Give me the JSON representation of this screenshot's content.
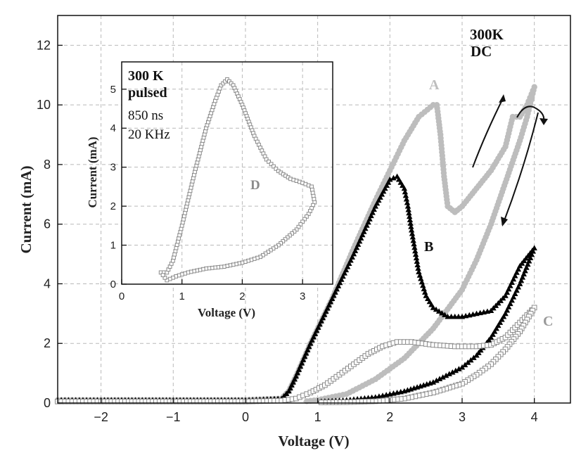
{
  "chart_data": [
    {
      "type": "line",
      "title": "",
      "xlabel": "Voltage (V)",
      "ylabel": "Current (mA)",
      "xlim": [
        -2.6,
        4.5
      ],
      "ylim": [
        0,
        13
      ],
      "xticks": [
        -2,
        -1,
        0,
        1,
        2,
        3,
        4
      ],
      "yticks": [
        0,
        2,
        4,
        6,
        8,
        10,
        12
      ],
      "grid": true,
      "annotations": [
        "300K",
        "DC"
      ],
      "series": [
        {
          "name": "A",
          "color": "#bdbdbd",
          "marker": "circle",
          "x": [
            -2.6,
            -2,
            -1,
            0,
            0.5,
            0.6,
            0.7,
            0.9,
            1.2,
            1.5,
            1.8,
            2.0,
            2.2,
            2.4,
            2.6,
            2.65,
            2.7,
            2.75,
            2.8,
            2.9,
            3.0,
            3.2,
            3.4,
            3.6,
            3.7,
            3.8,
            3.9,
            4.0,
            3.9,
            3.8,
            3.6,
            3.4,
            3.2,
            3.0,
            2.6,
            2.2,
            1.8,
            1.4,
            1.0,
            0.8
          ],
          "y": [
            0.1,
            0.1,
            0.1,
            0.1,
            0.15,
            0.4,
            0.9,
            2.0,
            3.5,
            5.2,
            6.8,
            7.8,
            8.8,
            9.6,
            10.0,
            10.0,
            9.0,
            7.6,
            6.6,
            6.4,
            6.6,
            7.2,
            7.8,
            8.6,
            9.6,
            9.6,
            10.0,
            10.6,
            9.6,
            8.8,
            7.4,
            6.0,
            4.8,
            3.8,
            2.5,
            1.5,
            0.8,
            0.3,
            0.1,
            0.05
          ]
        },
        {
          "name": "B",
          "color": "#000000",
          "marker": "triangle",
          "x": [
            -2.6,
            -2,
            -1,
            0,
            0.5,
            0.6,
            0.7,
            0.9,
            1.2,
            1.5,
            1.8,
            2.0,
            2.1,
            2.2,
            2.25,
            2.3,
            2.4,
            2.5,
            2.6,
            2.8,
            3.0,
            3.2,
            3.4,
            3.6,
            3.8,
            4.0,
            3.8,
            3.6,
            3.4,
            3.2,
            3.0,
            2.6,
            2.2,
            1.8,
            1.4,
            1.0
          ],
          "y": [
            0.1,
            0.1,
            0.1,
            0.1,
            0.15,
            0.4,
            0.9,
            2.0,
            3.5,
            5.0,
            6.6,
            7.5,
            7.6,
            7.2,
            6.6,
            5.8,
            4.4,
            3.6,
            3.2,
            2.9,
            2.9,
            3.0,
            3.1,
            3.6,
            4.6,
            5.2,
            4.0,
            3.0,
            2.2,
            1.6,
            1.2,
            0.7,
            0.4,
            0.2,
            0.1,
            0.05
          ]
        },
        {
          "name": "C",
          "color": "#8a8a8a",
          "marker": "square",
          "x": [
            -2.6,
            -2,
            -1,
            0,
            0.5,
            0.7,
            0.9,
            1.1,
            1.3,
            1.5,
            1.7,
            1.9,
            2.1,
            2.3,
            2.6,
            2.9,
            3.2,
            3.4,
            3.6,
            3.8,
            4.0,
            3.8,
            3.6,
            3.4,
            3.2,
            3.0,
            2.6,
            2.2,
            1.8,
            1.4,
            1.0
          ],
          "y": [
            0.05,
            0.05,
            0.05,
            0.05,
            0.08,
            0.15,
            0.35,
            0.6,
            0.95,
            1.3,
            1.65,
            1.9,
            2.05,
            2.05,
            1.95,
            1.9,
            1.9,
            1.95,
            2.2,
            2.7,
            3.2,
            2.4,
            1.8,
            1.3,
            0.95,
            0.65,
            0.35,
            0.15,
            0.06,
            0.03,
            0.02
          ]
        }
      ],
      "labels": [
        "A",
        "B",
        "C"
      ]
    },
    {
      "type": "line",
      "title": "",
      "xlabel": "Voltage (V)",
      "ylabel": "Current (mA)",
      "xlim": [
        0,
        3.5
      ],
      "ylim": [
        0,
        5.7
      ],
      "xticks": [
        0,
        1,
        2,
        3
      ],
      "yticks": [
        0,
        1,
        2,
        3,
        4,
        5
      ],
      "grid": true,
      "annotations": [
        "300 K",
        "pulsed",
        "850 ns",
        "20 KHz"
      ],
      "series": [
        {
          "name": "D",
          "color": "#8a8a8a",
          "marker": "square",
          "x": [
            0.65,
            0.75,
            0.85,
            1.0,
            1.2,
            1.4,
            1.55,
            1.65,
            1.75,
            1.85,
            2.0,
            2.2,
            2.4,
            2.6,
            2.8,
            3.0,
            3.15,
            3.2,
            3.1,
            2.9,
            2.6,
            2.3,
            2.0,
            1.7,
            1.4,
            1.1,
            0.9,
            0.75,
            0.65
          ],
          "y": [
            0.3,
            0.3,
            0.6,
            1.5,
            2.8,
            4.0,
            4.7,
            5.1,
            5.25,
            5.1,
            4.6,
            3.8,
            3.2,
            2.9,
            2.7,
            2.6,
            2.5,
            2.1,
            1.8,
            1.4,
            1.0,
            0.7,
            0.55,
            0.45,
            0.4,
            0.3,
            0.2,
            0.1,
            0.3
          ]
        }
      ],
      "labels": [
        "D"
      ]
    }
  ]
}
